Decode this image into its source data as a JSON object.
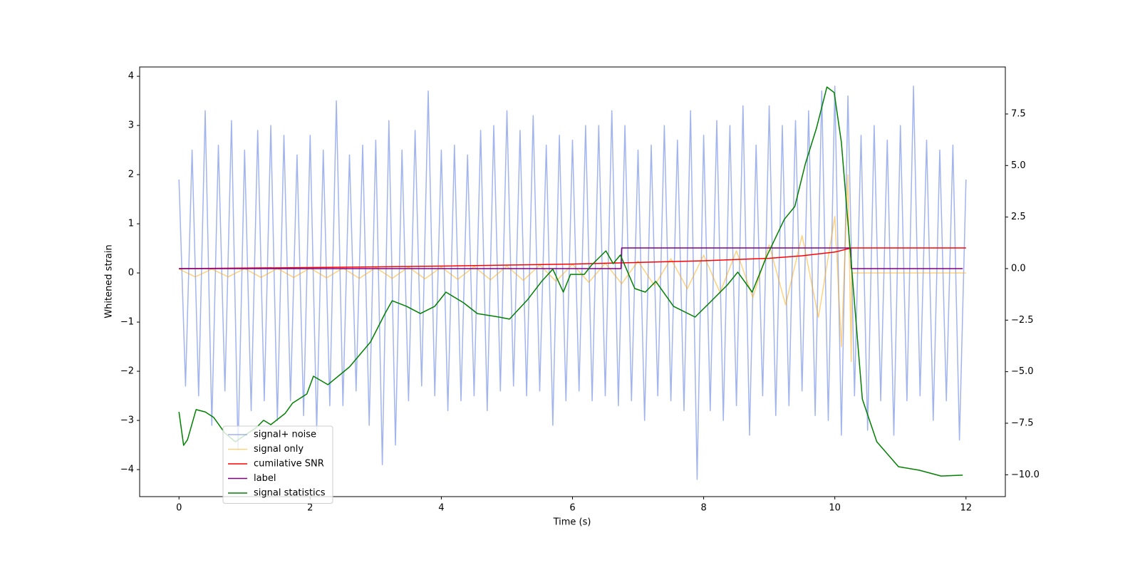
{
  "chart_data": {
    "type": "line",
    "xlabel": "Time (s)",
    "ylabel": "Whitened strain",
    "xlim": [
      -0.6,
      12.6
    ],
    "ylim": [
      -4.55,
      4.19
    ],
    "y2lim": [
      -11.06,
      9.78
    ],
    "xticks": [
      0,
      2,
      4,
      6,
      8,
      10,
      12
    ],
    "yticks": [
      {
        "value": -4,
        "label": "−4"
      },
      {
        "value": -3,
        "label": "−3"
      },
      {
        "value": -2,
        "label": "−2"
      },
      {
        "value": -1,
        "label": "−1"
      },
      0,
      1,
      2,
      3,
      4
    ],
    "y2ticks": [
      {
        "value": -10,
        "label": "−10.0"
      },
      {
        "value": -7.5,
        "label": "−7.5"
      },
      {
        "value": -5,
        "label": "−5.0"
      },
      {
        "value": -2.5,
        "label": "−2.5"
      },
      {
        "value": 0,
        "label": "0.0"
      },
      {
        "value": 2.5,
        "label": "2.5"
      },
      {
        "value": 5,
        "label": "5.0"
      },
      {
        "value": 7.5,
        "label": "7.5"
      }
    ],
    "legend": "lower left",
    "series": [
      {
        "name": "signal+ noise",
        "color": "#7994e8",
        "x": [
          0,
          0.1,
          0.2,
          0.3,
          0.4,
          0.5,
          0.6,
          0.7,
          0.8,
          0.9,
          1,
          1.1,
          1.2,
          1.3,
          1.4,
          1.5,
          1.6,
          1.7,
          1.8,
          1.9,
          2,
          2.1,
          2.2,
          2.3,
          2.4,
          2.5,
          2.6,
          2.7,
          2.8,
          2.9,
          3,
          3.1,
          3.2,
          3.3,
          3.4,
          3.5,
          3.6,
          3.7,
          3.8,
          3.9,
          4,
          4.1,
          4.2,
          4.3,
          4.4,
          4.5,
          4.6,
          4.7,
          4.8,
          4.9,
          5,
          5.1,
          5.2,
          5.3,
          5.4,
          5.5,
          5.6,
          5.7,
          5.8,
          5.9,
          6,
          6.1,
          6.2,
          6.3,
          6.4,
          6.5,
          6.6,
          6.7,
          6.8,
          6.9,
          7,
          7.1,
          7.2,
          7.3,
          7.4,
          7.5,
          7.6,
          7.7,
          7.8,
          7.9,
          8,
          8.1,
          8.2,
          8.3,
          8.4,
          8.5,
          8.6,
          8.7,
          8.8,
          8.9,
          9,
          9.1,
          9.2,
          9.3,
          9.4,
          9.5,
          9.6,
          9.7,
          9.8,
          9.9,
          10,
          10.1,
          10.2,
          10.3,
          10.4,
          10.5,
          10.6,
          10.7,
          10.8,
          10.9,
          11,
          11.1,
          11.2,
          11.3,
          11.4,
          11.5,
          11.6,
          11.7,
          11.8,
          11.9,
          12
        ],
        "values": [
          1.9,
          -2.3,
          2.5,
          -2.5,
          3.3,
          -3.1,
          2.6,
          -2.4,
          3.1,
          -3.6,
          2.5,
          -2.8,
          2.9,
          -2.6,
          3.0,
          -3.0,
          2.8,
          -2.6,
          2.4,
          -2.9,
          2.8,
          -3.2,
          2.5,
          -2.7,
          3.5,
          -2.7,
          2.4,
          -2.4,
          2.6,
          -3.1,
          2.7,
          -3.9,
          3.1,
          -3.5,
          2.5,
          -2.6,
          2.9,
          -2.3,
          3.7,
          -2.5,
          2.5,
          -2.8,
          2.6,
          -2.6,
          2.4,
          -2.5,
          2.9,
          -2.8,
          3.0,
          -2.4,
          3.3,
          -2.3,
          2.9,
          -2.5,
          3.2,
          -2.4,
          2.6,
          -3.1,
          2.8,
          -2.6,
          2.7,
          -2.4,
          3.0,
          -2.6,
          3.0,
          -2.5,
          3.3,
          -2.7,
          3.0,
          -2.6,
          2.5,
          -3.0,
          2.6,
          -2.5,
          3.0,
          -2.6,
          2.7,
          -2.8,
          3.3,
          -4.2,
          2.8,
          -2.8,
          3.1,
          -3.0,
          3.0,
          -2.7,
          3.4,
          -3.3,
          2.6,
          -2.5,
          3.4,
          -2.9,
          3.0,
          -2.7,
          3.1,
          -2.4,
          3.3,
          -2.9,
          3.7,
          -3.0,
          3.8,
          -3.3,
          3.6,
          -2.5,
          2.8,
          -3.2,
          3.0,
          -2.6,
          2.7,
          -3.3,
          3.0,
          -2.6,
          3.8,
          -2.5,
          2.7,
          -3.0,
          2.5,
          -2.6,
          2.6,
          -3.4,
          1.9
        ]
      },
      {
        "name": "signal only",
        "color": "#ffa500",
        "x": [
          0,
          0.25,
          0.5,
          0.75,
          1,
          1.25,
          1.5,
          1.75,
          2,
          2.25,
          2.5,
          2.75,
          3,
          3.25,
          3.5,
          3.75,
          4,
          4.25,
          4.5,
          4.75,
          5,
          5.25,
          5.5,
          5.75,
          6,
          6.25,
          6.5,
          6.75,
          7,
          7.25,
          7.5,
          7.75,
          8,
          8.25,
          8.5,
          8.75,
          9,
          9.25,
          9.5,
          9.75,
          10,
          10.1,
          10.2,
          10.25,
          10.26,
          12
        ],
        "values": [
          0.08,
          -0.08,
          0.08,
          -0.08,
          0.09,
          -0.09,
          0.09,
          -0.09,
          0.1,
          -0.1,
          0.1,
          -0.11,
          0.11,
          -0.11,
          0.12,
          -0.12,
          0.12,
          -0.13,
          0.13,
          -0.14,
          0.14,
          -0.15,
          0.16,
          -0.17,
          0.18,
          -0.19,
          0.2,
          -0.22,
          0.24,
          -0.26,
          0.29,
          -0.32,
          0.36,
          -0.4,
          0.45,
          -0.5,
          0.57,
          -0.65,
          0.76,
          -0.9,
          1.15,
          -1.5,
          2.0,
          -1.8,
          0,
          0
        ]
      },
      {
        "name": "cumilative SNR",
        "color": "#ff0000",
        "axis": "y2",
        "x": [
          0,
          2,
          4,
          6,
          8,
          9,
          9.5,
          10,
          10.25,
          12
        ],
        "values": [
          0,
          0.05,
          0.12,
          0.22,
          0.38,
          0.5,
          0.62,
          0.8,
          1.0,
          1.0
        ]
      },
      {
        "name": "label",
        "color": "#800080",
        "axis": "y2",
        "x": [
          0,
          6.74,
          6.75,
          10.24,
          10.25,
          11.95
        ],
        "values": [
          0,
          0,
          1,
          1,
          0,
          0
        ]
      },
      {
        "name": "signal statistics",
        "color": "#008000",
        "axis": "y2",
        "x": [
          0,
          0.07,
          0.13,
          0.26,
          0.4,
          0.53,
          0.7,
          0.86,
          1.02,
          1.18,
          1.29,
          1.4,
          1.62,
          1.73,
          1.95,
          2.05,
          2.27,
          2.6,
          2.92,
          3.14,
          3.25,
          3.47,
          3.68,
          3.9,
          4.07,
          4.34,
          4.55,
          4.88,
          5.04,
          5.32,
          5.53,
          5.7,
          5.86,
          5.97,
          6.18,
          6.29,
          6.51,
          6.62,
          6.73,
          6.95,
          7.11,
          7.27,
          7.54,
          7.87,
          8.09,
          8.36,
          8.52,
          8.74,
          8.96,
          9.23,
          9.39,
          9.55,
          9.72,
          9.88,
          9.99,
          10.1,
          10.26,
          10.42,
          10.64,
          10.97,
          11.29,
          11.62,
          11.95
        ],
        "values": [
          -6.95,
          -8.57,
          -8.3,
          -6.84,
          -6.95,
          -7.22,
          -7.98,
          -8.4,
          -8.05,
          -7.71,
          -7.36,
          -7.57,
          -7.02,
          -6.53,
          -6.08,
          -5.22,
          -5.63,
          -4.77,
          -3.56,
          -2.18,
          -1.56,
          -1.83,
          -2.18,
          -1.83,
          -1.14,
          -1.66,
          -2.18,
          -2.35,
          -2.45,
          -1.49,
          -0.62,
          -0.03,
          -1.14,
          -0.28,
          -0.28,
          0.17,
          0.86,
          0.24,
          0.66,
          -0.97,
          -1.14,
          -0.62,
          -1.83,
          -2.35,
          -1.66,
          -0.8,
          -0.17,
          -1.14,
          0.59,
          2.39,
          3.01,
          5.08,
          6.81,
          8.81,
          8.54,
          6.12,
          -0.1,
          -6.33,
          -8.4,
          -9.61,
          -9.78,
          -10.06,
          -10.02
        ]
      }
    ]
  }
}
